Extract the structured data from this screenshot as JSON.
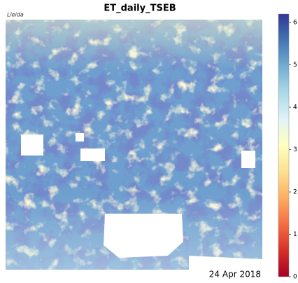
{
  "title": "ET_daily_TSEB",
  "region": "Lleida",
  "date": "24 Apr 2018",
  "colorbar": {
    "clim": [
      0,
      6.2
    ],
    "ticks": [
      0,
      1,
      2,
      3,
      4,
      5,
      6
    ],
    "colormap": [
      "#a50026",
      "#d73027",
      "#f46d43",
      "#fdae61",
      "#fee090",
      "#ffffbf",
      "#e0f3f8",
      "#abd9e9",
      "#74add1",
      "#4575b4",
      "#313695"
    ]
  }
}
